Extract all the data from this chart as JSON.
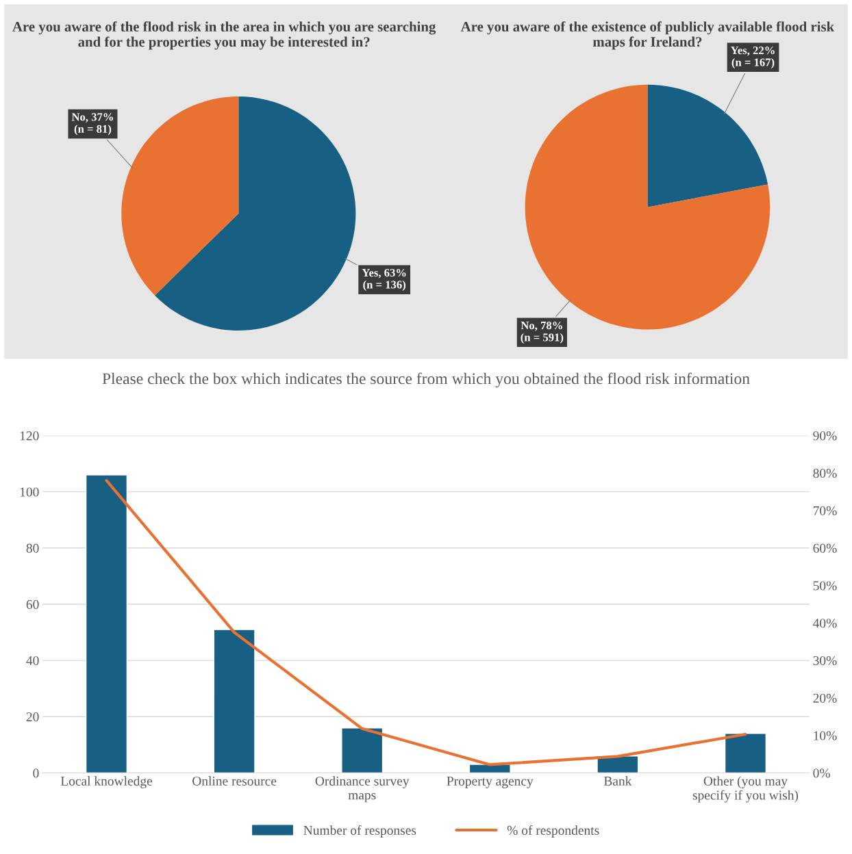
{
  "chart_data": [
    {
      "type": "pie",
      "title": "Are you aware of the flood risk in the area in which you are searching and for the properties you may be interested in?",
      "categories": [
        "Yes",
        "No"
      ],
      "values": [
        136,
        81
      ],
      "colors": [
        "#175f83",
        "#e97131"
      ],
      "value_labels": [
        "63%\n(n = 136)",
        "37%\n(n = 81)"
      ]
    },
    {
      "type": "pie",
      "title": "Are you aware of the existence of publicly available flood risk maps for Ireland?",
      "categories": [
        "Yes",
        "No"
      ],
      "values": [
        167,
        591
      ],
      "colors": [
        "#175f83",
        "#e97131"
      ],
      "value_labels": [
        "22%\n(n = 167)",
        "78%\n(n = 591)"
      ]
    },
    {
      "type": "bar",
      "title": "Please check the box which indicates the source from which you obtained the flood risk information",
      "categories": [
        "Local knowledge",
        "Online resource",
        "Ordinance survey\nmaps",
        "Property agency",
        "Bank",
        "Other (you may\nspecify if you wish)"
      ],
      "series": [
        {
          "name": "Number of responses",
          "color": "#175f83",
          "values": [
            106,
            51,
            16,
            3,
            6,
            14
          ]
        },
        {
          "name": "% of respondents",
          "type": "line",
          "axis": "y2",
          "color": "#e97131",
          "values": [
            78,
            37.5,
            11.8,
            2.2,
            4.4,
            10.3
          ]
        }
      ],
      "ylim": [
        0,
        120
      ],
      "yticks": [
        0,
        20,
        40,
        60,
        80,
        100,
        120
      ],
      "y2lim": [
        0,
        90
      ],
      "y2ticks": [
        {
          "value": 0,
          "label": "0%"
        },
        {
          "value": 10,
          "label": "10%"
        },
        {
          "value": 20,
          "label": "20%"
        },
        {
          "value": 30,
          "label": "30%"
        },
        {
          "value": 40,
          "label": "40%"
        },
        {
          "value": 50,
          "label": "50%"
        },
        {
          "value": 60,
          "label": "60%"
        },
        {
          "value": 70,
          "label": "70%"
        },
        {
          "value": 80,
          "label": "80%"
        },
        {
          "value": 90,
          "label": "90%"
        }
      ],
      "grid": "y",
      "legend": "bottom"
    }
  ]
}
